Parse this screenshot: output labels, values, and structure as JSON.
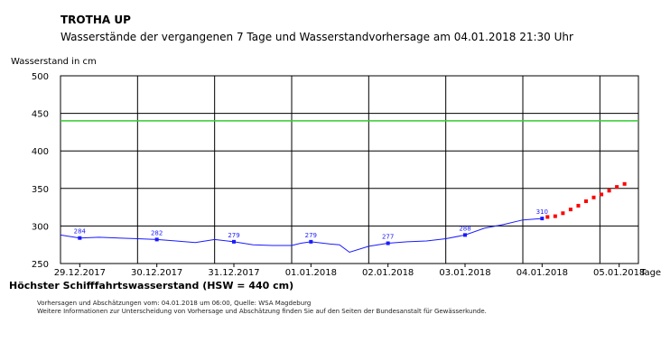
{
  "title": "TROTHA UP",
  "subtitle": "Wasserstände der vergangenen 7 Tage und Wasserstandvorhersage am 04.01.2018 21:30 Uhr",
  "hsw_text": "Höchster Schifffahrtswasserstand (HSW = 440 cm)",
  "notes": [
    "Vorhersagen und Abschätzungen vom: 04.01.2018 um 06:00, Quelle: WSA Magdeburg",
    "Weitere Informationen zur Unterscheidung von Vorhersage und Abschätzung finden Sie auf den Seiten der Bundesanstalt für Gewässerkunde."
  ],
  "chart_data": {
    "type": "line",
    "ylabel": "Wasserstand in cm",
    "xlabel": "Tage",
    "ylim": [
      250,
      500
    ],
    "yticks": [
      250,
      300,
      350,
      400,
      450,
      500
    ],
    "xlim": [
      0,
      7.5
    ],
    "xticks": [
      {
        "x": 0.25,
        "label": "29.12.2017"
      },
      {
        "x": 1.25,
        "label": "30.12.2017"
      },
      {
        "x": 2.25,
        "label": "31.12.2017"
      },
      {
        "x": 3.25,
        "label": "01.01.2018"
      },
      {
        "x": 4.25,
        "label": "02.01.2018"
      },
      {
        "x": 5.25,
        "label": "03.01.2018"
      },
      {
        "x": 6.25,
        "label": "04.01.2018"
      },
      {
        "x": 7.25,
        "label": "05.01.2018"
      }
    ],
    "grid": true,
    "hsw_value": 440,
    "colors": {
      "observed": "#1a1aff",
      "forecast": "#ff0000",
      "hsw": "#33cc33",
      "frame": "#000000"
    },
    "observed": {
      "x": [
        0,
        0.25,
        0.5,
        0.75,
        1.0,
        1.25,
        1.5,
        1.75,
        2.0,
        2.25,
        2.5,
        2.75,
        3.0,
        3.12,
        3.25,
        3.5,
        3.62,
        3.75,
        4.0,
        4.25,
        4.5,
        4.75,
        5.0,
        5.25,
        5.5,
        5.75,
        6.0,
        6.25
      ],
      "y": [
        288,
        284,
        285,
        284,
        283,
        282,
        280,
        278,
        282,
        279,
        275,
        274,
        274,
        277,
        279,
        276,
        275,
        265,
        273,
        277,
        279,
        280,
        283,
        288,
        297,
        302,
        308,
        310
      ]
    },
    "forecast": {
      "x": [
        6.32,
        6.42,
        6.52,
        6.62,
        6.72,
        6.82,
        6.92,
        7.02,
        7.12,
        7.22,
        7.32
      ],
      "y": [
        312,
        313,
        317,
        322,
        327,
        333,
        338,
        342,
        347,
        352,
        356
      ]
    },
    "data_labels": [
      {
        "x": 0.25,
        "y": 284,
        "text": "284"
      },
      {
        "x": 1.25,
        "y": 282,
        "text": "282"
      },
      {
        "x": 2.25,
        "y": 279,
        "text": "279"
      },
      {
        "x": 3.25,
        "y": 279,
        "text": "279"
      },
      {
        "x": 4.25,
        "y": 277,
        "text": "277"
      },
      {
        "x": 5.25,
        "y": 288,
        "text": "288"
      },
      {
        "x": 6.25,
        "y": 310,
        "text": "310"
      }
    ]
  }
}
